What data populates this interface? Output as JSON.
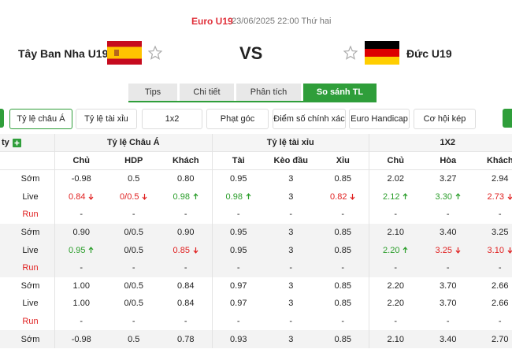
{
  "header": {
    "league": "Euro U19",
    "datetime": "23/06/2025 22:00 Thứ hai",
    "home": "Tây Ban Nha U19",
    "vs": "VS",
    "away": "Đức U19"
  },
  "tabs": [
    "Tips",
    "Chi tiết",
    "Phân tích",
    "So sánh TL"
  ],
  "active_tab": 3,
  "filters": [
    "Tỷ lệ châu Á",
    "Tỷ lệ tài xỉu",
    "1x2",
    "Phạt góc",
    "Điểm số chính xác",
    "Euro Handicap",
    "Cơ hội kép"
  ],
  "active_filter": 0,
  "table": {
    "corner": "ty",
    "groups": [
      "Tỷ lệ Châu Á",
      "Tỷ lệ tài xỉu",
      "1X2"
    ],
    "columns": [
      "Chủ",
      "HDP",
      "Khách",
      "Tài",
      "Kèo đầu",
      "Xỉu",
      "Chủ",
      "Hòa",
      "Khách"
    ],
    "matches": [
      [
        {
          "label": "Sớm",
          "cells": [
            "-0.98",
            "0.5",
            "0.80",
            "0.95",
            "3",
            "0.85",
            "2.02",
            "3.27",
            "2.94"
          ],
          "trends": [
            null,
            null,
            null,
            null,
            null,
            null,
            null,
            null,
            null
          ]
        },
        {
          "label": "Live",
          "cells": [
            "0.84",
            "0/0.5",
            "0.98",
            "0.98",
            "3",
            "0.82",
            "2.12",
            "3.30",
            "2.73"
          ],
          "trends": [
            "down",
            "down",
            "up",
            "up",
            null,
            "down",
            "up",
            "up",
            "down"
          ]
        },
        {
          "label": "Run",
          "cells": [
            "-",
            "-",
            "-",
            "-",
            "-",
            "-",
            "-",
            "-",
            "-"
          ],
          "trends": [
            null,
            null,
            null,
            null,
            null,
            null,
            null,
            null,
            null
          ]
        }
      ],
      [
        {
          "label": "Sớm",
          "cells": [
            "0.90",
            "0/0.5",
            "0.90",
            "0.95",
            "3",
            "0.85",
            "2.10",
            "3.40",
            "3.25"
          ],
          "trends": [
            null,
            null,
            null,
            null,
            null,
            null,
            null,
            null,
            null
          ]
        },
        {
          "label": "Live",
          "cells": [
            "0.95",
            "0/0.5",
            "0.85",
            "0.95",
            "3",
            "0.85",
            "2.20",
            "3.25",
            "3.10"
          ],
          "trends": [
            "up",
            null,
            "down",
            null,
            null,
            null,
            "up",
            "down",
            "down"
          ]
        },
        {
          "label": "Run",
          "cells": [
            "-",
            "-",
            "-",
            "-",
            "-",
            "-",
            "-",
            "-",
            "-"
          ],
          "trends": [
            null,
            null,
            null,
            null,
            null,
            null,
            null,
            null,
            null
          ]
        }
      ],
      [
        {
          "label": "Sớm",
          "cells": [
            "1.00",
            "0/0.5",
            "0.84",
            "0.97",
            "3",
            "0.85",
            "2.20",
            "3.70",
            "2.66"
          ],
          "trends": [
            null,
            null,
            null,
            null,
            null,
            null,
            null,
            null,
            null
          ]
        },
        {
          "label": "Live",
          "cells": [
            "1.00",
            "0/0.5",
            "0.84",
            "0.97",
            "3",
            "0.85",
            "2.20",
            "3.70",
            "2.66"
          ],
          "trends": [
            null,
            null,
            null,
            null,
            null,
            null,
            null,
            null,
            null
          ]
        },
        {
          "label": "Run",
          "cells": [
            "-",
            "-",
            "-",
            "-",
            "-",
            "-",
            "-",
            "-",
            "-"
          ],
          "trends": [
            null,
            null,
            null,
            null,
            null,
            null,
            null,
            null,
            null
          ]
        }
      ],
      [
        {
          "label": "Sớm",
          "cells": [
            "-0.98",
            "0.5",
            "0.78",
            "0.93",
            "3",
            "0.85",
            "2.10",
            "3.40",
            "2.70"
          ],
          "trends": [
            null,
            null,
            null,
            null,
            null,
            null,
            null,
            null,
            null
          ]
        }
      ]
    ]
  }
}
